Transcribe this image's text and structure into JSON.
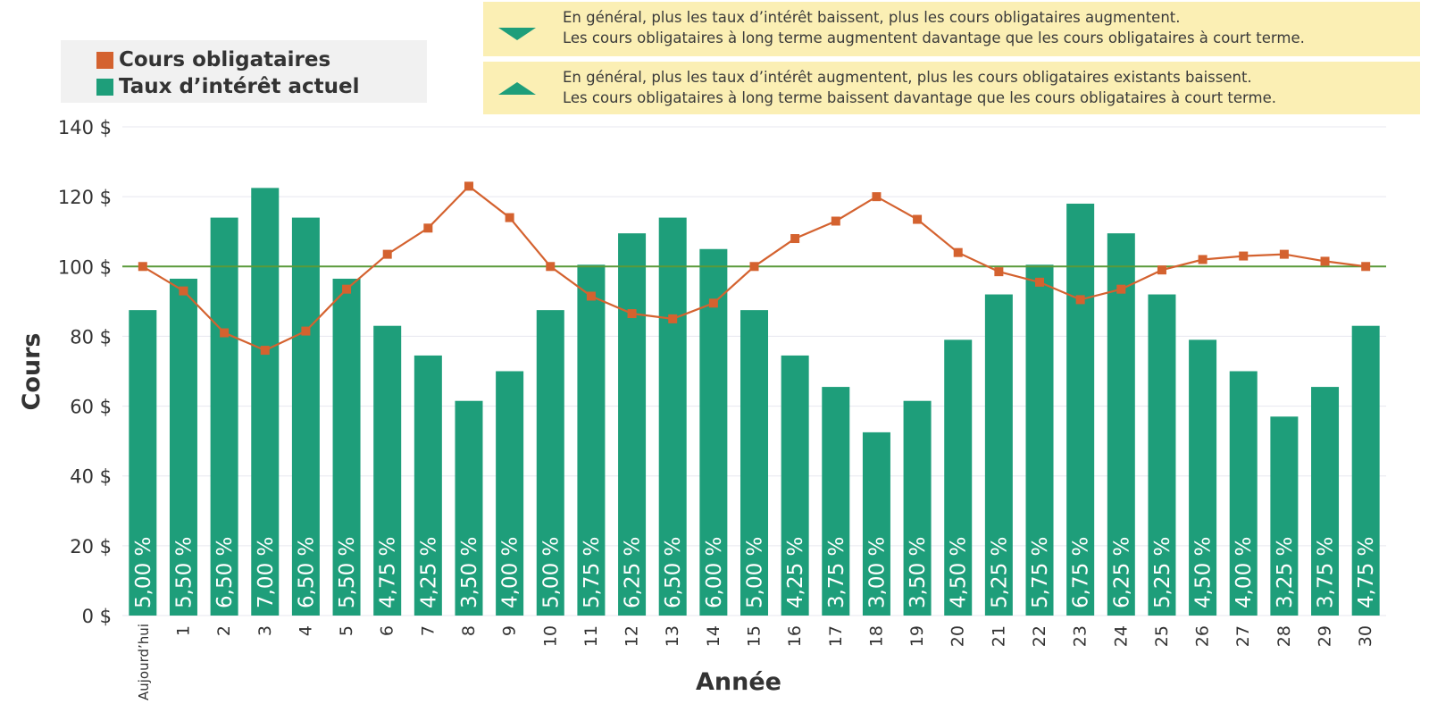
{
  "legend": {
    "price_label": "Cours obligataires",
    "rate_label": "Taux d’intérêt actuel"
  },
  "notes": {
    "down_line1": "En général, plus les taux d’intérêt baissent, plus les cours obligataires augmentent.",
    "down_line2": "Les cours obligataires à long terme augmentent davantage que les cours obligataires à court terme.",
    "up_line1": "En général, plus les taux d’intérêt augmentent, plus les cours obligataires existants baissent.",
    "up_line2": "Les cours obligataires à long terme baissent davantage que les cours obligataires à court terme."
  },
  "icons": {
    "down_icon": "triangle-down",
    "up_icon": "triangle-up"
  },
  "colors": {
    "bar": "#1e9e7a",
    "price_line": "#d4622f",
    "price_marker": "#d4622f",
    "reference_line": "#5a9a3a",
    "note_background": "#fbefb4",
    "legend_background": "#f1f1f1",
    "bar_label": "#ffffff"
  },
  "chart_data": {
    "type": "bar",
    "xlabel": "Année",
    "ylabel": "Cours",
    "ylim": [
      0,
      140
    ],
    "yticks": [
      0,
      20,
      40,
      60,
      80,
      100,
      120,
      140
    ],
    "ytick_labels": [
      "0 $",
      "20 $",
      "40 $",
      "60 $",
      "80 $",
      "100 $",
      "120 $",
      "140 $"
    ],
    "grid": true,
    "legend_position": "top-left",
    "reference_value": 100,
    "categories": [
      "Aujourd’hui",
      "1",
      "2",
      "3",
      "4",
      "5",
      "6",
      "7",
      "8",
      "9",
      "10",
      "11",
      "12",
      "13",
      "14",
      "15",
      "16",
      "17",
      "18",
      "19",
      "20",
      "21",
      "22",
      "23",
      "24",
      "25",
      "26",
      "27",
      "28",
      "29",
      "30"
    ],
    "series": [
      {
        "name": "Taux d’intérêt actuel",
        "type": "bar",
        "values": [
          87.5,
          96.5,
          114,
          122.5,
          114,
          96.5,
          83,
          74.5,
          61.5,
          70,
          87.5,
          100.5,
          109.5,
          114,
          105,
          87.5,
          74.5,
          65.5,
          52.5,
          61.5,
          79,
          92,
          100.5,
          118,
          109.5,
          92,
          79,
          70,
          57,
          65.5,
          83
        ],
        "labels": [
          "5,00 %",
          "5,50 %",
          "6,50 %",
          "7,00 %",
          "6,50 %",
          "5,50 %",
          "4,75 %",
          "4,25 %",
          "3,50 %",
          "4,00 %",
          "5,00 %",
          "5,75 %",
          "6,25 %",
          "6,50 %",
          "6,00 %",
          "5,00 %",
          "4,25 %",
          "3,75 %",
          "3,00 %",
          "3,50 %",
          "4,50 %",
          "5,25 %",
          "5,75 %",
          "6,75 %",
          "6,25 %",
          "5,25 %",
          "4,50 %",
          "4,00 %",
          "3,25 %",
          "3,75 %",
          "4,75 %"
        ]
      },
      {
        "name": "Cours obligataires",
        "type": "line",
        "values": [
          100,
          93,
          81,
          76,
          81.5,
          93.5,
          103.5,
          111,
          123,
          114,
          100,
          91.5,
          86.5,
          85,
          89.5,
          100,
          108,
          113,
          120,
          113.5,
          104,
          98.5,
          95.5,
          90.5,
          93.5,
          99,
          102,
          103,
          103.5,
          101.5,
          100
        ]
      }
    ]
  }
}
